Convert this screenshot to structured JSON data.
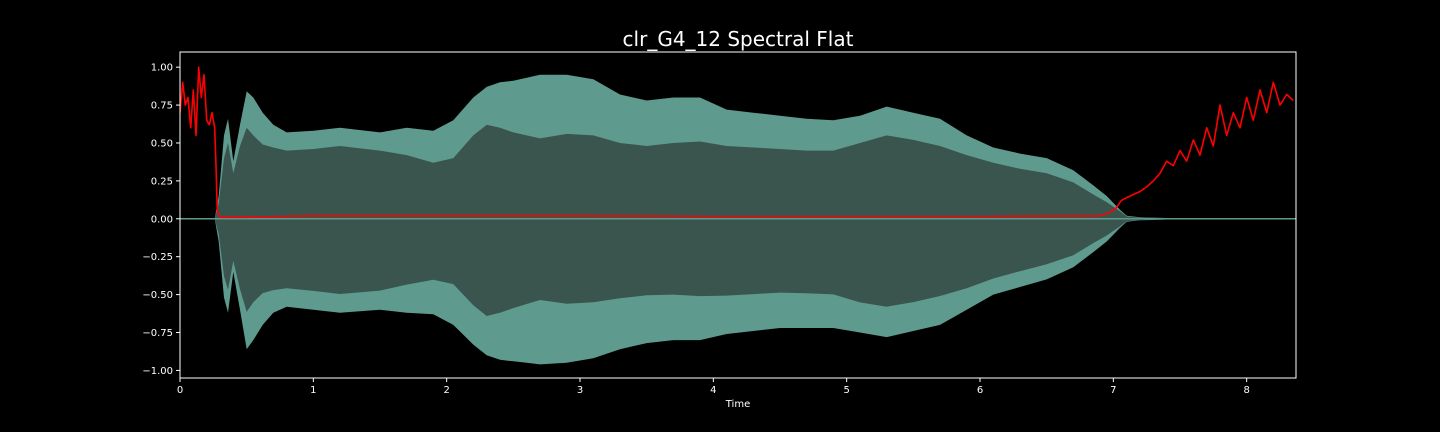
{
  "chart_data": {
    "type": "area",
    "title": "clr_G4_12 Spectral Flat",
    "xlabel": "Time",
    "ylabel": "",
    "xlim": [
      0,
      8.37
    ],
    "ylim": [
      -1.05,
      1.1
    ],
    "xticks": [
      0,
      1,
      2,
      3,
      4,
      5,
      6,
      7,
      8
    ],
    "xtick_labels": [
      "0",
      "1",
      "2",
      "3",
      "4",
      "5",
      "6",
      "7",
      "8"
    ],
    "yticks": [
      1.0,
      0.75,
      0.5,
      0.25,
      0.0,
      -0.25,
      -0.5,
      -0.75,
      -1.0
    ],
    "ytick_labels": [
      "1.00",
      "0.75",
      "0.50",
      "0.25",
      "0.00",
      "−0.25",
      "−0.50",
      "−0.75",
      "−1.00"
    ],
    "grid": false,
    "background": "#000000",
    "colors": {
      "waveform_outer": "#5f9a8f",
      "waveform_inner": "#3a554e",
      "flatness_line": "#ff0000",
      "axes": "#ffffff"
    },
    "series": [
      {
        "kind": "waveform",
        "x": [
          0.0,
          0.26,
          0.29,
          0.33,
          0.36,
          0.4,
          0.45,
          0.5,
          0.55,
          0.62,
          0.7,
          0.8,
          1.0,
          1.2,
          1.5,
          1.7,
          1.9,
          2.05,
          2.2,
          2.3,
          2.4,
          2.5,
          2.6,
          2.7,
          2.9,
          3.1,
          3.3,
          3.5,
          3.7,
          3.9,
          4.1,
          4.3,
          4.5,
          4.7,
          4.9,
          5.1,
          5.3,
          5.5,
          5.7,
          5.9,
          6.1,
          6.3,
          6.5,
          6.7,
          6.85,
          6.95,
          7.05,
          7.1,
          7.2,
          7.4,
          7.7,
          8.0,
          8.37
        ],
        "upper": [
          0.0,
          0.0,
          0.15,
          0.55,
          0.66,
          0.38,
          0.62,
          0.84,
          0.8,
          0.7,
          0.62,
          0.57,
          0.58,
          0.6,
          0.57,
          0.6,
          0.58,
          0.65,
          0.8,
          0.87,
          0.9,
          0.91,
          0.93,
          0.95,
          0.95,
          0.92,
          0.82,
          0.78,
          0.8,
          0.8,
          0.72,
          0.7,
          0.68,
          0.66,
          0.65,
          0.68,
          0.74,
          0.7,
          0.66,
          0.55,
          0.47,
          0.43,
          0.4,
          0.32,
          0.22,
          0.15,
          0.06,
          0.02,
          0.01,
          0.005,
          0.005,
          0.005,
          0.005
        ],
        "inner": [
          0.0,
          0.0,
          0.1,
          0.4,
          0.5,
          0.3,
          0.48,
          0.6,
          0.55,
          0.49,
          0.47,
          0.45,
          0.46,
          0.48,
          0.45,
          0.42,
          0.37,
          0.4,
          0.55,
          0.62,
          0.6,
          0.57,
          0.55,
          0.53,
          0.56,
          0.55,
          0.5,
          0.48,
          0.5,
          0.51,
          0.48,
          0.47,
          0.46,
          0.45,
          0.45,
          0.5,
          0.55,
          0.52,
          0.48,
          0.42,
          0.37,
          0.33,
          0.3,
          0.24,
          0.16,
          0.11,
          0.05,
          0.015,
          0.008,
          0.004,
          0.004,
          0.004,
          0.004
        ],
        "lower": [
          0.0,
          0.0,
          -0.15,
          -0.52,
          -0.62,
          -0.35,
          -0.6,
          -0.86,
          -0.8,
          -0.7,
          -0.62,
          -0.58,
          -0.6,
          -0.62,
          -0.6,
          -0.62,
          -0.63,
          -0.7,
          -0.83,
          -0.9,
          -0.93,
          -0.94,
          -0.95,
          -0.96,
          -0.95,
          -0.92,
          -0.86,
          -0.82,
          -0.8,
          -0.8,
          -0.76,
          -0.74,
          -0.72,
          -0.72,
          -0.72,
          -0.75,
          -0.78,
          -0.74,
          -0.7,
          -0.6,
          -0.5,
          -0.45,
          -0.4,
          -0.32,
          -0.22,
          -0.15,
          -0.06,
          -0.02,
          -0.01,
          -0.005,
          -0.005,
          -0.005,
          -0.005
        ]
      },
      {
        "kind": "line",
        "x": [
          0.0,
          0.02,
          0.04,
          0.06,
          0.08,
          0.1,
          0.12,
          0.14,
          0.16,
          0.18,
          0.2,
          0.22,
          0.24,
          0.26,
          0.27,
          0.28,
          0.3,
          0.5,
          1.0,
          2.0,
          3.0,
          4.0,
          5.0,
          6.0,
          6.9,
          6.97,
          7.02,
          7.06,
          7.1,
          7.15,
          7.2,
          7.25,
          7.3,
          7.35,
          7.4,
          7.45,
          7.5,
          7.55,
          7.6,
          7.65,
          7.7,
          7.75,
          7.8,
          7.85,
          7.9,
          7.95,
          8.0,
          8.05,
          8.1,
          8.15,
          8.2,
          8.25,
          8.3,
          8.35
        ],
        "y": [
          0.7,
          0.9,
          0.75,
          0.8,
          0.6,
          0.85,
          0.55,
          1.0,
          0.8,
          0.95,
          0.65,
          0.62,
          0.7,
          0.6,
          0.35,
          0.05,
          0.01,
          0.01,
          0.02,
          0.02,
          0.02,
          0.015,
          0.015,
          0.015,
          0.02,
          0.04,
          0.07,
          0.12,
          0.14,
          0.16,
          0.18,
          0.21,
          0.25,
          0.3,
          0.38,
          0.35,
          0.45,
          0.38,
          0.52,
          0.42,
          0.6,
          0.48,
          0.75,
          0.55,
          0.7,
          0.6,
          0.8,
          0.65,
          0.85,
          0.7,
          0.9,
          0.75,
          0.82,
          0.78
        ]
      }
    ]
  }
}
